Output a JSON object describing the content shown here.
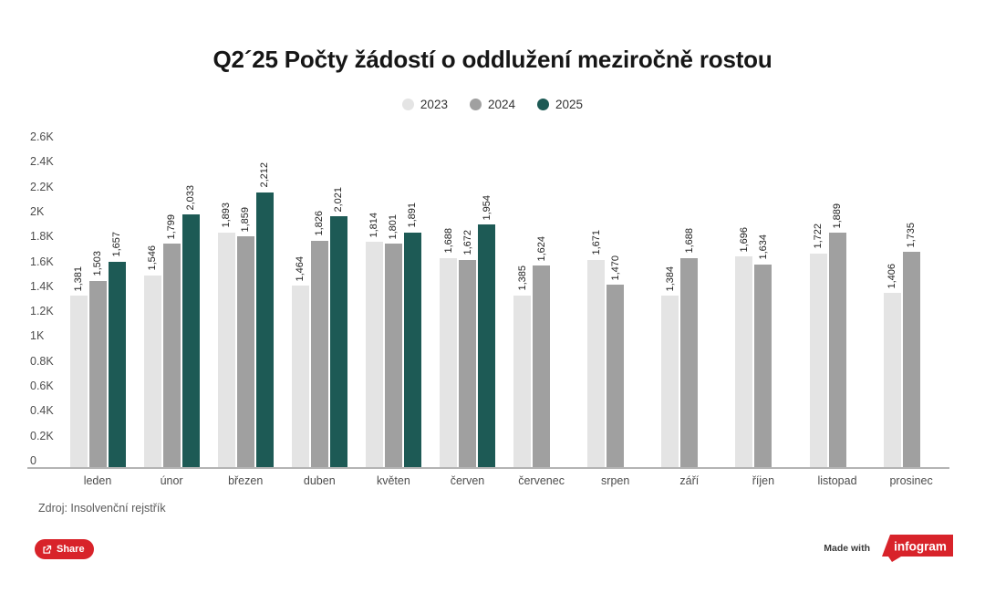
{
  "title": "Q2´25 Počty žádostí o oddlužení meziročně rostou",
  "source_note": "Zdroj: Insolvenční rejstřík",
  "share_button": {
    "label": "Share"
  },
  "attribution": {
    "made_with": "Made with",
    "brand": "infogram"
  },
  "colors": {
    "brand_red": "#d8232a",
    "series_2023": "#e4e4e4",
    "series_2024": "#a0a0a0",
    "series_2025": "#1d5a55",
    "axis_line": "#b4b4b4",
    "tick_text": "#4d4d4d",
    "title_text": "#161616"
  },
  "chart_data": {
    "type": "bar",
    "title": "Q2´25 Počty žádostí o oddlužení meziročně rostou",
    "xlabel": "",
    "ylabel": "",
    "ylim": [
      0,
      2600
    ],
    "grid": false,
    "legend_position": "top",
    "value_labels": "rotated-90",
    "categories": [
      "leden",
      "únor",
      "březen",
      "duben",
      "květen",
      "červen",
      "červenec",
      "srpen",
      "září",
      "říjen",
      "listopad",
      "prosinec"
    ],
    "series": [
      {
        "name": "2023",
        "color": "#e4e4e4",
        "values": [
          1381,
          1546,
          1893,
          1464,
          1814,
          1688,
          1385,
          1671,
          1384,
          1696,
          1722,
          1406
        ]
      },
      {
        "name": "2024",
        "color": "#a0a0a0",
        "values": [
          1503,
          1799,
          1859,
          1826,
          1801,
          1672,
          1624,
          1470,
          1688,
          1634,
          1889,
          1735
        ]
      },
      {
        "name": "2025",
        "color": "#1d5a55",
        "values": [
          1657,
          2033,
          2212,
          2021,
          1891,
          1954,
          null,
          null,
          null,
          null,
          null,
          null
        ]
      }
    ],
    "yticks": [
      {
        "value": 0,
        "label": "0"
      },
      {
        "value": 200,
        "label": "0.2K"
      },
      {
        "value": 400,
        "label": "0.4K"
      },
      {
        "value": 600,
        "label": "0.6K"
      },
      {
        "value": 800,
        "label": "0.8K"
      },
      {
        "value": 1000,
        "label": "1K"
      },
      {
        "value": 1200,
        "label": "1.2K"
      },
      {
        "value": 1400,
        "label": "1.4K"
      },
      {
        "value": 1600,
        "label": "1.6K"
      },
      {
        "value": 1800,
        "label": "1.8K"
      },
      {
        "value": 2000,
        "label": "2K"
      },
      {
        "value": 2200,
        "label": "2.2K"
      },
      {
        "value": 2400,
        "label": "2.4K"
      },
      {
        "value": 2600,
        "label": "2.6K"
      }
    ]
  }
}
